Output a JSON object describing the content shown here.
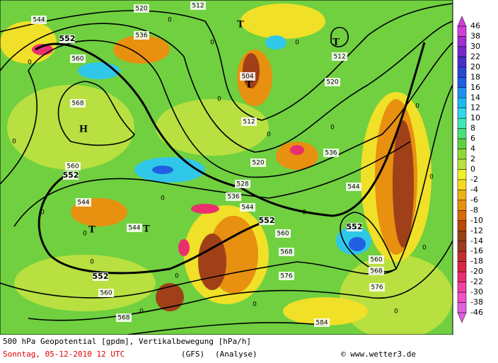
{
  "map": {
    "contour_labels": [
      "520",
      "512",
      "544",
      "552",
      "536",
      "560",
      "504",
      "512",
      "520",
      "568",
      "512",
      "520",
      "536",
      "528",
      "560",
      "552",
      "536",
      "544",
      "544",
      "552",
      "552",
      "544",
      "544",
      "560",
      "568",
      "560",
      "568",
      "576",
      "576",
      "552",
      "560",
      "568",
      "584"
    ],
    "zero_labels": [
      "0",
      "0",
      "0",
      "0",
      "0",
      "0",
      "0",
      "0",
      "0",
      "0",
      "0",
      "0",
      "0",
      "0",
      "0",
      "0",
      "0",
      "0",
      "0",
      "0"
    ],
    "pressure_centers": [
      "T",
      "T",
      "T",
      "H",
      "T",
      "T"
    ],
    "legend": {
      "labels": [
        "46",
        "38",
        "30",
        "22",
        "20",
        "18",
        "16",
        "14",
        "12",
        "10",
        "8",
        "6",
        "4",
        "2",
        "0",
        "-2",
        "-4",
        "-6",
        "-8",
        "-10",
        "-12",
        "-14",
        "-16",
        "-18",
        "-20",
        "-22",
        "-30",
        "-38",
        "-46"
      ],
      "colors": [
        "#d040d8",
        "#a030d0",
        "#7828c8",
        "#4830c8",
        "#2848d0",
        "#2060e0",
        "#2090f0",
        "#20b8f0",
        "#30d8e8",
        "#40e8b8",
        "#48e078",
        "#60d040",
        "#90d838",
        "#b8e040",
        "#f0f028",
        "#f8d820",
        "#f0b018",
        "#e89010",
        "#d86808",
        "#b84808",
        "#984010",
        "#a03820",
        "#c03030",
        "#d82840",
        "#e83070",
        "#f040a0",
        "#f050c8",
        "#e060e0"
      ]
    },
    "footer": {
      "line1": "500 hPa Geopotential [gpdm], Vertikalbewegung [hPa/h]",
      "date": "Sonntag, 05-12-2010  12 UTC",
      "model": "(GFS)",
      "analysis": "(Analyse)",
      "credit": "© www.wetter3.de"
    }
  }
}
